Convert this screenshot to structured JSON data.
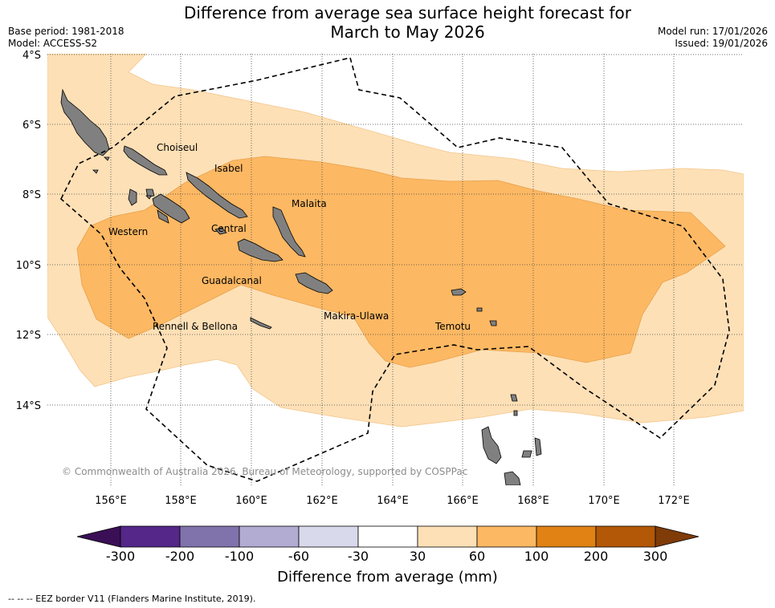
{
  "title_line1": "Difference from average sea surface height forecast for",
  "title_line2": "March to May 2026",
  "base_period": "Base period: 1981-2018",
  "model": "Model: ACCESS-S2",
  "model_run": "Model run: 17/01/2026",
  "issued": "Issued: 19/01/2026",
  "copyright": "© Commonwealth of Australia 2026, Bureau of Meteorology, supported by COSPPac",
  "lat_labels": [
    "4°S",
    "6°S",
    "8°S",
    "10°S",
    "12°S",
    "14°S"
  ],
  "lon_labels": [
    "156°E",
    "158°E",
    "160°E",
    "162°E",
    "164°E",
    "166°E",
    "168°E",
    "170°E",
    "172°E"
  ],
  "provinces": [
    "Choiseul",
    "Isabel",
    "Malaita",
    "Western",
    "Central",
    "Guadalcanal",
    "Rennell & Bellona",
    "Makira-Ulawa",
    "Temotu"
  ],
  "colorbar": {
    "title": "Difference from average (mm)",
    "ticks": [
      "-300",
      "-200",
      "-100",
      "-60",
      "-30",
      "30",
      "60",
      "100",
      "200",
      "300"
    ],
    "colors": [
      "#3b0f56",
      "#542788",
      "#8073ac",
      "#b2abd2",
      "#d8daeb",
      "#ffffff",
      "#fee0b6",
      "#fdb863",
      "#e08214",
      "#b35806",
      "#7f3b08"
    ]
  },
  "legend_note": "--  --  -- EEZ border V11 (Flanders Marine Institute, 2019)."
}
